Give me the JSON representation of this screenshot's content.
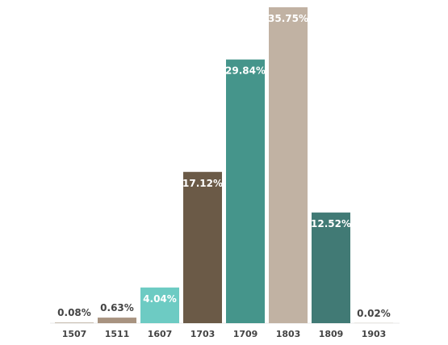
{
  "chart_data": {
    "type": "bar",
    "categories": [
      "1507",
      "1511",
      "1607",
      "1703",
      "1709",
      "1803",
      "1809",
      "1903"
    ],
    "values": [
      0.08,
      0.63,
      4.04,
      17.12,
      29.84,
      35.75,
      12.52,
      0.02
    ],
    "labels": [
      "0.08%",
      "0.63%",
      "4.04%",
      "17.12%",
      "29.84%",
      "35.75%",
      "12.52%",
      "0.02%"
    ],
    "colors": [
      "#bfb2a3",
      "#a89380",
      "#6dcbc3",
      "#6b5a47",
      "#45958b",
      "#c1b2a3",
      "#417a75",
      "#bfb2a3"
    ],
    "ylim": [
      0,
      35.75
    ],
    "grid": false,
    "legend": "none"
  }
}
